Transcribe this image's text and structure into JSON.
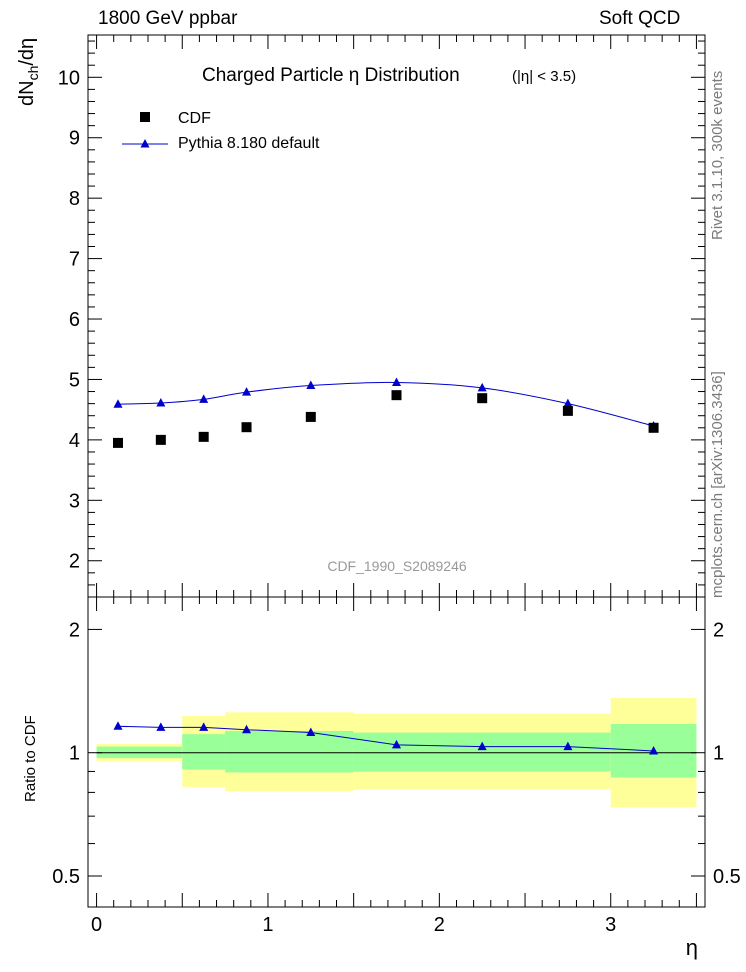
{
  "header": {
    "left": "1800 GeV ppbar",
    "right": "Soft QCD"
  },
  "side_labels": {
    "rivet": "Rivet 3.1.10,  300k events",
    "mcplots": "mcplots.cern.ch [arXiv:1306.3436]"
  },
  "chart_data": [
    {
      "type": "scatter",
      "title": "Charged Particle  η Distribution",
      "title_cut": "(|η| < 3.5)",
      "ylabel": "dN_ch/dη",
      "ylim": [
        1.4,
        10.7
      ],
      "xlim": [
        -0.05,
        3.55
      ],
      "yticks": [
        2,
        3,
        4,
        5,
        6,
        7,
        8,
        9,
        10
      ],
      "watermark": "CDF_1990_S2089246",
      "legend": {
        "position": "top-left",
        "entries": [
          "CDF",
          "Pythia 8.180 default"
        ]
      },
      "series": [
        {
          "name": "CDF",
          "marker": "square",
          "color": "#000000",
          "x": [
            0.125,
            0.375,
            0.625,
            0.875,
            1.25,
            1.75,
            2.25,
            2.75,
            3.25
          ],
          "y": [
            3.95,
            4.0,
            4.05,
            4.21,
            4.38,
            4.74,
            4.69,
            4.48,
            4.2
          ]
        },
        {
          "name": "Pythia 8.180 default",
          "marker": "triangle",
          "color": "#0000cc",
          "x": [
            0.125,
            0.375,
            0.625,
            0.875,
            1.25,
            1.75,
            2.25,
            2.75,
            3.25
          ],
          "y": [
            4.59,
            4.61,
            4.67,
            4.79,
            4.9,
            4.95,
            4.86,
            4.6,
            4.23
          ]
        }
      ]
    },
    {
      "type": "line",
      "ylabel": "Ratio to CDF",
      "ylim": [
        0.42,
        2.4
      ],
      "xlim": [
        -0.05,
        3.55
      ],
      "yscale": "log",
      "yticks": [
        0.5,
        1,
        2
      ],
      "yticklabels": [
        "0.5",
        "1",
        "2"
      ],
      "xlabel": "η",
      "xticks": [
        0,
        1,
        2,
        3
      ],
      "xticklabels": [
        "0",
        "1",
        "2",
        "3"
      ],
      "bands": [
        {
          "x0": 0.0,
          "x1": 0.5,
          "yellow": [
            0.955,
            1.05
          ],
          "green": [
            0.97,
            1.035
          ]
        },
        {
          "x0": 0.5,
          "x1": 0.75,
          "yellow": [
            0.825,
            1.23
          ],
          "green": [
            0.91,
            1.11
          ]
        },
        {
          "x0": 0.75,
          "x1": 1.5,
          "yellow": [
            0.805,
            1.255
          ],
          "green": [
            0.895,
            1.13
          ]
        },
        {
          "x0": 1.5,
          "x1": 3.0,
          "yellow": [
            0.815,
            1.245
          ],
          "green": [
            0.9,
            1.12
          ]
        },
        {
          "x0": 3.0,
          "x1": 3.5,
          "yellow": [
            0.735,
            1.36
          ],
          "green": [
            0.87,
            1.175
          ]
        }
      ],
      "series": [
        {
          "name": "Pythia 8.180 default",
          "marker": "triangle",
          "color": "#0000cc",
          "x": [
            0.125,
            0.375,
            0.625,
            0.875,
            1.25,
            1.75,
            2.25,
            2.75,
            3.25
          ],
          "y": [
            1.16,
            1.153,
            1.153,
            1.138,
            1.12,
            1.045,
            1.035,
            1.035,
            1.01
          ]
        }
      ]
    }
  ]
}
